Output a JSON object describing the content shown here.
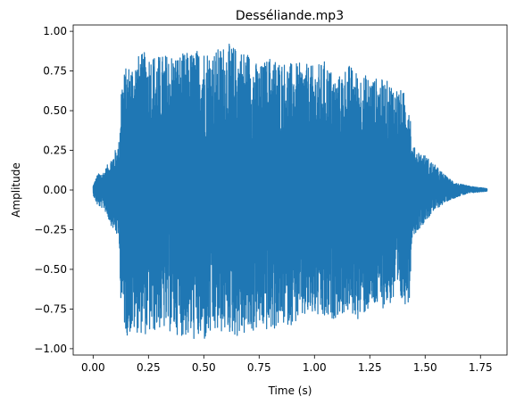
{
  "chart_data": {
    "type": "line",
    "title": "Desséliande.mp3",
    "xlabel": "Time (s)",
    "ylabel": "Amplitude",
    "xlim": [
      -0.09,
      1.87
    ],
    "ylim": [
      -1.04,
      1.04
    ],
    "xticks": [
      0.0,
      0.25,
      0.5,
      0.75,
      1.0,
      1.25,
      1.5,
      1.75
    ],
    "xtick_labels": [
      "0.00",
      "0.25",
      "0.50",
      "0.75",
      "1.00",
      "1.25",
      "1.50",
      "1.75"
    ],
    "yticks": [
      -1.0,
      -0.75,
      -0.5,
      -0.25,
      0.0,
      0.25,
      0.5,
      0.75,
      1.0
    ],
    "ytick_labels": [
      "−1.00",
      "−0.75",
      "−0.50",
      "−0.25",
      "0.00",
      "0.25",
      "0.50",
      "0.75",
      "1.00"
    ],
    "grid": false,
    "series": [
      {
        "color": "#1f77b4",
        "x_range": [
          0.0,
          1.78
        ],
        "envelope": {
          "t": [
            0.0,
            0.02,
            0.05,
            0.08,
            0.11,
            0.12,
            0.125,
            0.15,
            0.2,
            0.25,
            0.3,
            0.35,
            0.4,
            0.45,
            0.5,
            0.55,
            0.6,
            0.65,
            0.7,
            0.75,
            0.8,
            0.85,
            0.9,
            0.95,
            1.0,
            1.05,
            1.1,
            1.15,
            1.2,
            1.25,
            1.3,
            1.35,
            1.4,
            1.43,
            1.44,
            1.5,
            1.55,
            1.6,
            1.65,
            1.7,
            1.75,
            1.78
          ],
          "max": [
            0.03,
            0.1,
            0.12,
            0.2,
            0.28,
            0.33,
            0.7,
            0.78,
            0.85,
            0.88,
            0.85,
            0.87,
            0.86,
            0.88,
            0.9,
            0.88,
            0.93,
            0.9,
            0.88,
            0.78,
            0.85,
            0.82,
            0.8,
            0.8,
            0.78,
            0.82,
            0.7,
            0.8,
            0.74,
            0.72,
            0.7,
            0.68,
            0.62,
            0.6,
            0.28,
            0.22,
            0.15,
            0.08,
            0.04,
            0.025,
            0.015,
            0.01
          ],
          "min": [
            -0.03,
            -0.1,
            -0.12,
            -0.22,
            -0.3,
            -0.37,
            -0.75,
            -0.92,
            -0.9,
            -0.92,
            -0.88,
            -0.9,
            -0.92,
            -0.95,
            -0.97,
            -0.92,
            -0.9,
            -0.93,
            -0.92,
            -0.88,
            -0.9,
            -0.86,
            -0.85,
            -0.82,
            -0.8,
            -0.85,
            -0.8,
            -0.78,
            -0.82,
            -0.76,
            -0.75,
            -0.72,
            -0.73,
            -0.7,
            -0.3,
            -0.2,
            -0.12,
            -0.07,
            -0.04,
            -0.02,
            -0.012,
            -0.008
          ]
        }
      }
    ]
  }
}
